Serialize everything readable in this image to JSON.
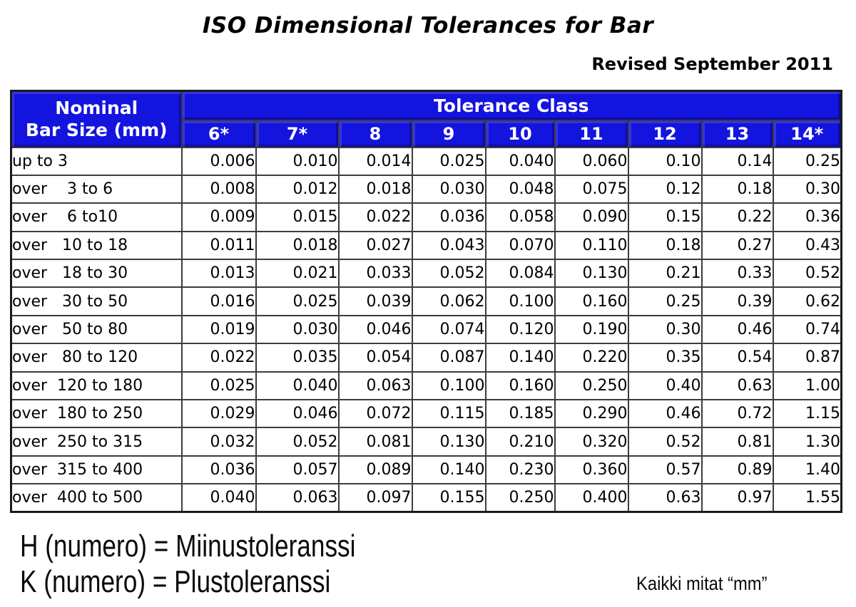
{
  "title": "ISO Dimensional Tolerances for Bar",
  "revision_note": "Revised September 2011",
  "table": {
    "corner_header_line1": "Nominal",
    "corner_header_line2": "Bar Size (mm)",
    "group_header": "Tolerance Class",
    "class_headers": [
      "6*",
      "7*",
      "8",
      "9",
      "10",
      "11",
      "12",
      "13",
      "14*"
    ],
    "rows": [
      {
        "label": "up to 3",
        "values": [
          "0.006",
          "0.010",
          "0.014",
          "0.025",
          "0.040",
          "0.060",
          "0.10",
          "0.14",
          "0.25"
        ]
      },
      {
        "label": "over    3 to 6",
        "values": [
          "0.008",
          "0.012",
          "0.018",
          "0.030",
          "0.048",
          "0.075",
          "0.12",
          "0.18",
          "0.30"
        ]
      },
      {
        "label": "over    6 to10",
        "values": [
          "0.009",
          "0.015",
          "0.022",
          "0.036",
          "0.058",
          "0.090",
          "0.15",
          "0.22",
          "0.36"
        ]
      },
      {
        "label": "over   10 to 18",
        "values": [
          "0.011",
          "0.018",
          "0.027",
          "0.043",
          "0.070",
          "0.110",
          "0.18",
          "0.27",
          "0.43"
        ]
      },
      {
        "label": "over   18 to 30",
        "values": [
          "0.013",
          "0.021",
          "0.033",
          "0.052",
          "0.084",
          "0.130",
          "0.21",
          "0.33",
          "0.52"
        ]
      },
      {
        "label": "over   30 to 50",
        "values": [
          "0.016",
          "0.025",
          "0.039",
          "0.062",
          "0.100",
          "0.160",
          "0.25",
          "0.39",
          "0.62"
        ]
      },
      {
        "label": "over   50 to 80",
        "values": [
          "0.019",
          "0.030",
          "0.046",
          "0.074",
          "0.120",
          "0.190",
          "0.30",
          "0.46",
          "0.74"
        ]
      },
      {
        "label": "over   80 to 120",
        "values": [
          "0.022",
          "0.035",
          "0.054",
          "0.087",
          "0.140",
          "0.220",
          "0.35",
          "0.54",
          "0.87"
        ]
      },
      {
        "label": "over  120 to 180",
        "values": [
          "0.025",
          "0.040",
          "0.063",
          "0.100",
          "0.160",
          "0.250",
          "0.40",
          "0.63",
          "1.00"
        ]
      },
      {
        "label": "over  180 to 250",
        "values": [
          "0.029",
          "0.046",
          "0.072",
          "0.115",
          "0.185",
          "0.290",
          "0.46",
          "0.72",
          "1.15"
        ]
      },
      {
        "label": "over  250 to 315",
        "values": [
          "0.032",
          "0.052",
          "0.081",
          "0.130",
          "0.210",
          "0.320",
          "0.52",
          "0.81",
          "1.30"
        ]
      },
      {
        "label": "over  315 to 400",
        "values": [
          "0.036",
          "0.057",
          "0.089",
          "0.140",
          "0.230",
          "0.360",
          "0.57",
          "0.89",
          "1.40"
        ]
      },
      {
        "label": "over  400 to 500",
        "values": [
          "0.040",
          "0.063",
          "0.097",
          "0.155",
          "0.250",
          "0.400",
          "0.63",
          "0.97",
          "1.55"
        ]
      }
    ]
  },
  "footnotes": {
    "line1": "H (numero) = Miinustoleranssi",
    "line2": "K (numero) = Plustoleranssi",
    "units_note": "Kaikki mitat “mm”"
  },
  "colors": {
    "header_blue": "#1414DF",
    "header_text": "#FFFFFF",
    "grid_line": "#3C3C3C",
    "outer_border": "#1A1A1A",
    "body_text": "#000000",
    "background": "#FFFFFF"
  }
}
